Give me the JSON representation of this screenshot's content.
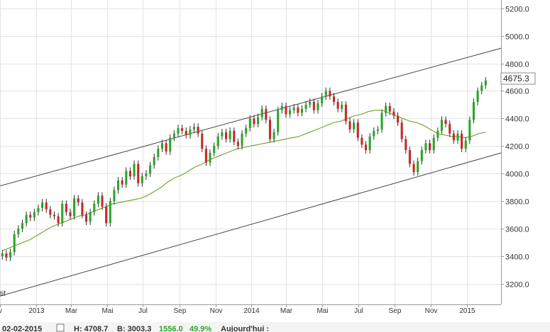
{
  "colors": {
    "background": "#ffffff",
    "grid": "#e3e3e3",
    "bull_candle": "#2aa62a",
    "bear_candle": "#c8282a",
    "wick": "#333333",
    "moving_average": "#76a930",
    "channel_line": "#444444",
    "status_green": "#2aa62a",
    "status_text": "#333333"
  },
  "left_edge_labels": {
    "bottom_truncated_text": "tif"
  },
  "last_price_label": "4675.3",
  "status_bar": {
    "date": "02-02-2015",
    "high": "H: 4708.7",
    "low": "B: 3003.3",
    "change": "1556.0",
    "change_pct": "49.9%",
    "today_label": "Aujourd'hui :"
  },
  "chart_data": {
    "type": "candlestick",
    "title": "",
    "xlabel": "",
    "ylabel": "",
    "x_range": [
      "2012-11-01",
      "2015-02-28"
    ],
    "y_range": [
      3050,
      5260
    ],
    "y_ticks": [
      "3200.0",
      "3400.0",
      "3600.0",
      "3800.0",
      "4000.0",
      "4200.0",
      "4400.0",
      "4600.0",
      "4800.0",
      "5000.0",
      "5200.0"
    ],
    "x_ticks": [
      {
        "date": "2012-11-01",
        "label": "v"
      },
      {
        "date": "2013-01-01",
        "label": "2013"
      },
      {
        "date": "2013-03-01",
        "label": "Mar"
      },
      {
        "date": "2013-05-01",
        "label": "Mai"
      },
      {
        "date": "2013-07-01",
        "label": "Jul"
      },
      {
        "date": "2013-09-01",
        "label": "Sep"
      },
      {
        "date": "2013-11-01",
        "label": "Nov"
      },
      {
        "date": "2014-01-01",
        "label": "2014"
      },
      {
        "date": "2014-03-01",
        "label": "Mar"
      },
      {
        "date": "2014-05-01",
        "label": "Mai"
      },
      {
        "date": "2014-07-01",
        "label": "Jul"
      },
      {
        "date": "2014-09-01",
        "label": "Sep"
      },
      {
        "date": "2014-11-01",
        "label": "Nov"
      },
      {
        "date": "2015-01-01",
        "label": "2015"
      }
    ],
    "grid": true,
    "y_axis_side": "right",
    "series_candles_close_weekly": [
      3420,
      3390,
      3430,
      3560,
      3600,
      3640,
      3700,
      3680,
      3720,
      3750,
      3790,
      3740,
      3700,
      3690,
      3640,
      3780,
      3720,
      3690,
      3820,
      3790,
      3700,
      3650,
      3720,
      3780,
      3840,
      3760,
      3640,
      3800,
      3880,
      3950,
      3920,
      4020,
      3980,
      4070,
      3930,
      3980,
      4000,
      4060,
      4120,
      4180,
      4220,
      4160,
      4260,
      4290,
      4330,
      4310,
      4280,
      4320,
      4340,
      4290,
      4180,
      4080,
      4150,
      4200,
      4270,
      4300,
      4250,
      4310,
      4230,
      4200,
      4290,
      4330,
      4400,
      4360,
      4410,
      4470,
      4390,
      4250,
      4300,
      4460,
      4490,
      4430,
      4460,
      4480,
      4440,
      4470,
      4500,
      4520,
      4460,
      4510,
      4560,
      4600,
      4560,
      4520,
      4470,
      4500,
      4380,
      4320,
      4370,
      4260,
      4210,
      4170,
      4270,
      4310,
      4320,
      4440,
      4490,
      4450,
      4420,
      4370,
      4250,
      4170,
      4070,
      4010,
      4090,
      4170,
      4220,
      4170,
      4260,
      4310,
      4390,
      4360,
      4290,
      4240,
      4290,
      4180,
      4240,
      4390,
      4520,
      4600,
      4640,
      4675
    ],
    "series_moving_average": [
      3440,
      3460,
      3480,
      3500,
      3520,
      3550,
      3580,
      3610,
      3630,
      3650,
      3670,
      3690,
      3700,
      3720,
      3740,
      3760,
      3780,
      3790,
      3800,
      3810,
      3820,
      3840,
      3870,
      3900,
      3940,
      3970,
      3990,
      4020,
      4050,
      4070,
      4100,
      4120,
      4140,
      4160,
      4180,
      4190,
      4200,
      4210,
      4220,
      4230,
      4240,
      4250,
      4260,
      4270,
      4290,
      4310,
      4330,
      4350,
      4370,
      4380,
      4400,
      4420,
      4430,
      4450,
      4460,
      4460,
      4440,
      4420,
      4400,
      4380,
      4370,
      4350,
      4320,
      4290,
      4280,
      4270,
      4270,
      4260,
      4270,
      4290,
      4300
    ],
    "upper_channel": {
      "start": {
        "date": "2012-11-01",
        "value": 3910
      },
      "end": {
        "date": "2015-02-28",
        "value": 4910
      }
    },
    "lower_channel": {
      "start": {
        "date": "2012-11-01",
        "value": 3110
      },
      "end": {
        "date": "2015-02-28",
        "value": 4150
      }
    }
  }
}
